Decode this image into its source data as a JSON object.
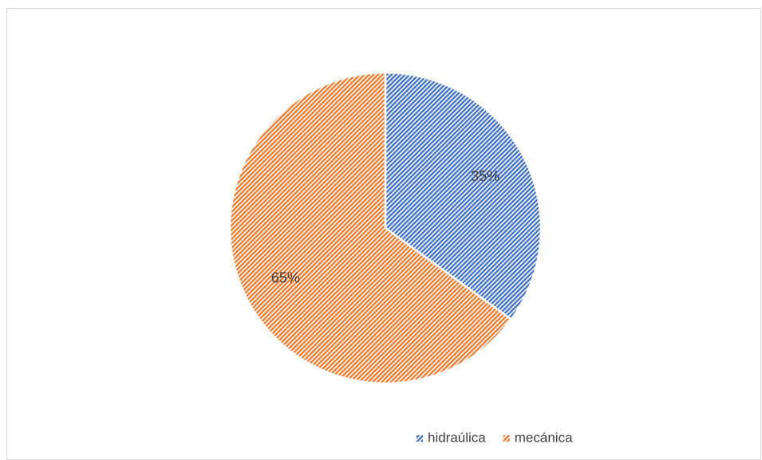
{
  "chart_data": {
    "type": "pie",
    "categories": [
      "hidraúlica",
      "mecánica"
    ],
    "values": [
      35,
      65
    ],
    "value_labels": [
      "35%",
      "65%"
    ],
    "colors": [
      "#4472c4",
      "#ed7d31"
    ],
    "legend": "bottom"
  }
}
